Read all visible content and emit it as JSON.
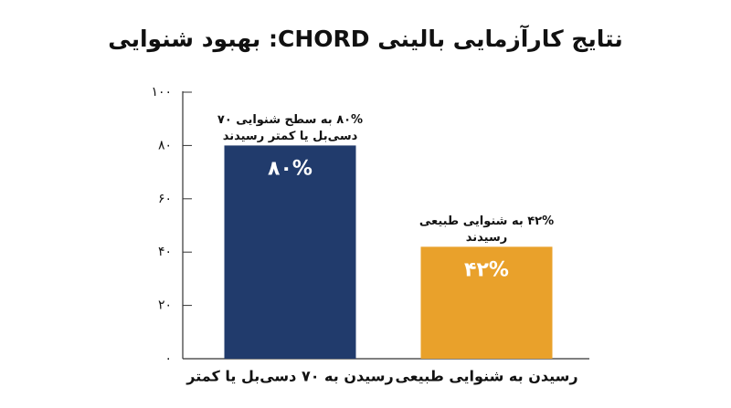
{
  "chart_data": {
    "type": "bar",
    "title": "نتایج کارآزمایی بالینی CHORD: بهبود شنوایی",
    "categories": [
      "رسیدن به ۷۰ دسی‌بل یا کمتر",
      "رسیدن به شنوایی طبیعی"
    ],
    "values": [
      80,
      42
    ],
    "value_labels": [
      "۸۰%",
      "۴۲%"
    ],
    "annotations": [
      [
        "۸۰% به سطح شنوایی ۷۰",
        "دسی‌بل یا کمتر رسیدند"
      ],
      [
        "۴۲% به شنوایی طبیعی",
        "رسیدند"
      ]
    ],
    "colors": [
      "#213b6c",
      "#e9a12b"
    ],
    "ylim": [
      0,
      100
    ],
    "yticks": [
      {
        "value": 0,
        "label": "۰"
      },
      {
        "value": 20,
        "label": "۲۰"
      },
      {
        "value": 40,
        "label": "۴۰"
      },
      {
        "value": 60,
        "label": "۶۰"
      },
      {
        "value": 80,
        "label": "۸۰"
      },
      {
        "value": 100,
        "label": "۱۰۰"
      }
    ],
    "grid": false
  }
}
